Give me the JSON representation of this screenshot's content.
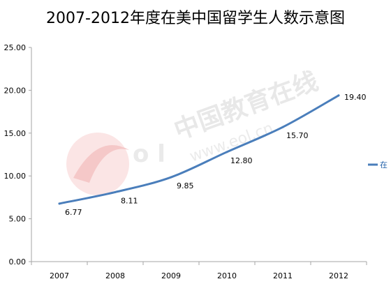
{
  "chart_data": {
    "type": "line",
    "title": "2007-2012年度在美中国留学生人数示意图",
    "categories": [
      "2007",
      "2008",
      "2009",
      "2010",
      "2011",
      "2012"
    ],
    "series": [
      {
        "values": [
          6.77,
          8.11,
          9.85,
          12.8,
          15.7,
          19.4
        ],
        "color": "#4a7ebb"
      }
    ],
    "data_labels": [
      "6.77",
      "8.11",
      "9.85",
      "12.80",
      "15.70",
      "19.40"
    ],
    "y_tick_labels": [
      "0.00",
      "5.00",
      "10.00",
      "15.00",
      "20.00",
      "25.00"
    ],
    "ylim": [
      0,
      25
    ],
    "grid": false,
    "legend_position": "right (partially cut off)",
    "legend_label_fragment": "在"
  },
  "watermark": {
    "text": "中国教育在线",
    "sub_text": "www.eol.cn"
  },
  "colors": {
    "line": "#4a7ebb",
    "axis": "#a6a6a6"
  }
}
